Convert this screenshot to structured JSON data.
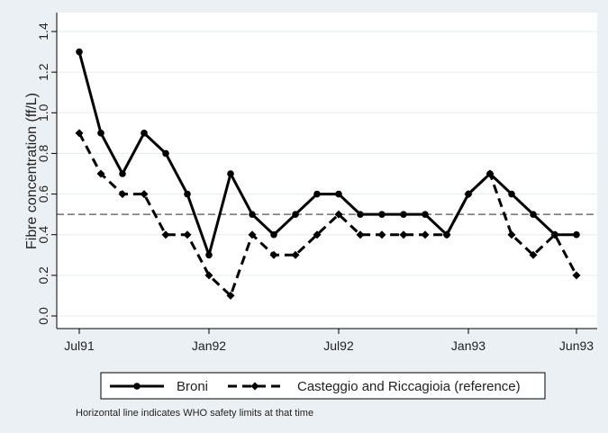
{
  "chart_data": {
    "type": "line",
    "title": "",
    "xlabel": "",
    "ylabel": "Fibre concentration (ff/L)",
    "ylim": [
      0,
      1.4
    ],
    "yticks": [
      "0.0",
      "0.2",
      "0.4",
      "0.6",
      "0.8",
      "1.0",
      "1.2",
      "1.4"
    ],
    "xlim": [
      "Jul91",
      "Jun93"
    ],
    "xticks": [
      {
        "label": "Jul91",
        "month": 0
      },
      {
        "label": "Jan92",
        "month": 6
      },
      {
        "label": "Jul92",
        "month": 12
      },
      {
        "label": "Jan93",
        "month": 18
      },
      {
        "label": "Jun93",
        "month": 23
      }
    ],
    "grid": "horizontal",
    "reference_line": {
      "value": 0.5
    },
    "legend_position": "bottom",
    "series": [
      {
        "name": "Broni",
        "style": "solid",
        "marker": "circle",
        "color": "#000000",
        "months": [
          0,
          1,
          2,
          3,
          4,
          5,
          6,
          7,
          8,
          9,
          10,
          11,
          12,
          13,
          14,
          15,
          16,
          17,
          18,
          19,
          20,
          21,
          22,
          23
        ],
        "values": [
          1.3,
          0.9,
          0.7,
          0.9,
          0.8,
          0.6,
          0.3,
          0.7,
          0.5,
          0.4,
          0.5,
          0.6,
          0.6,
          0.5,
          0.5,
          0.5,
          0.5,
          0.4,
          0.6,
          0.7,
          0.6,
          0.5,
          0.4,
          0.4
        ]
      },
      {
        "name": "Casteggio and Riccagioia (reference)",
        "style": "dashed",
        "marker": "diamond",
        "color": "#000000",
        "months": [
          0,
          1,
          2,
          3,
          4,
          5,
          6,
          7,
          8,
          9,
          10,
          11,
          12,
          13,
          14,
          15,
          16,
          17,
          18,
          19,
          20,
          21,
          22,
          23
        ],
        "values": [
          0.9,
          0.7,
          0.6,
          0.6,
          0.4,
          0.4,
          0.2,
          0.1,
          0.4,
          0.3,
          0.3,
          0.4,
          0.5,
          0.4,
          0.4,
          0.4,
          0.4,
          0.4,
          0.6,
          0.7,
          0.4,
          0.3,
          0.4,
          0.2
        ]
      }
    ],
    "note": "Horizontal line indicates WHO safety limits at that time"
  }
}
